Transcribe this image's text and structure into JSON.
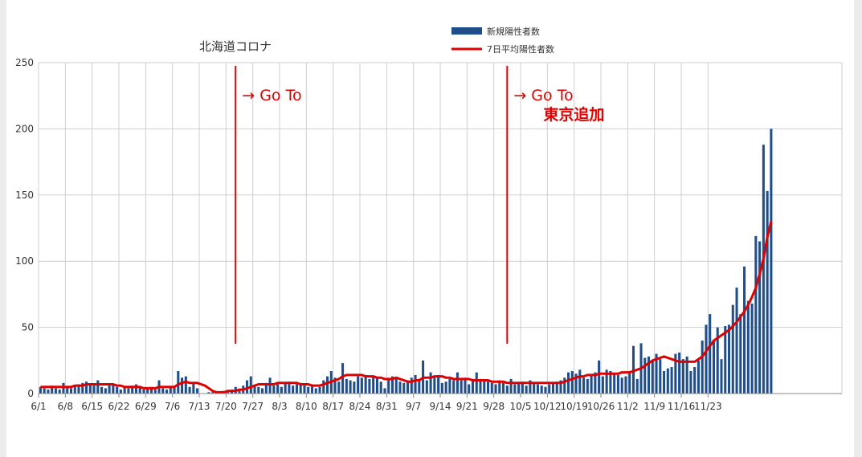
{
  "chart_data": {
    "type": "bar",
    "title": "北海道コロナ",
    "xlabel": "",
    "ylabel": "",
    "ylim": [
      0,
      250
    ],
    "yticks": [
      0,
      50,
      100,
      150,
      200,
      250
    ],
    "grid": true,
    "legend_position": "top",
    "x_tick_labels": [
      "6/1",
      "6/8",
      "6/15",
      "6/22",
      "6/29",
      "7/6",
      "7/13",
      "7/20",
      "7/27",
      "8/3",
      "8/10",
      "8/17",
      "8/24",
      "8/31",
      "9/7",
      "9/14",
      "9/21",
      "9/28",
      "10/5",
      "10/12",
      "10/19",
      "10/26",
      "11/2",
      "11/9",
      "11/16",
      "11/23"
    ],
    "x_start_date": "2020-06-01",
    "x_end_date": "2020-11-27",
    "series": [
      {
        "name": "新規陽性者数",
        "type": "bar",
        "color": "#1f4e8c",
        "values": [
          5,
          4,
          3,
          6,
          4,
          3,
          8,
          5,
          4,
          6,
          7,
          8,
          9,
          7,
          6,
          10,
          5,
          4,
          6,
          7,
          5,
          3,
          5,
          4,
          6,
          7,
          5,
          3,
          4,
          5,
          3,
          10,
          4,
          3,
          5,
          6,
          17,
          12,
          13,
          5,
          8,
          4,
          0,
          0,
          1,
          1,
          1,
          0,
          2,
          1,
          3,
          5,
          2,
          6,
          10,
          13,
          6,
          5,
          4,
          8,
          12,
          6,
          7,
          5,
          8,
          9,
          6,
          7,
          8,
          6,
          5,
          7,
          4,
          5,
          10,
          13,
          17,
          12,
          9,
          23,
          11,
          10,
          9,
          13,
          12,
          14,
          11,
          13,
          12,
          9,
          4,
          11,
          13,
          12,
          9,
          8,
          10,
          12,
          14,
          11,
          25,
          10,
          16,
          12,
          14,
          8,
          9,
          11,
          10,
          16,
          10,
          12,
          7,
          11,
          16,
          11,
          10,
          9,
          8,
          7,
          10,
          8,
          6,
          11,
          7,
          8,
          9,
          6,
          10,
          8,
          7,
          6,
          5,
          7,
          8,
          9,
          10,
          12,
          16,
          17,
          15,
          18,
          12,
          11,
          14,
          16,
          25,
          13,
          18,
          17,
          15,
          14,
          12,
          13,
          17,
          36,
          11,
          38,
          27,
          28,
          25,
          30,
          26,
          17,
          19,
          20,
          30,
          31,
          26,
          28,
          17,
          20,
          25,
          40,
          52,
          60,
          40,
          50,
          26,
          51,
          52,
          67,
          80,
          60,
          96,
          70,
          68,
          119,
          115,
          188,
          153,
          200,
          0,
          0,
          0,
          0,
          0,
          0,
          0,
          0,
          0,
          0,
          0,
          0,
          0,
          0,
          0,
          0,
          0,
          0
        ]
      },
      {
        "name": "7日平均陽性者数",
        "type": "line",
        "color": "#e00000",
        "values": [
          5,
          5,
          5,
          5,
          5,
          5,
          5,
          5,
          5,
          6,
          6,
          6,
          7,
          7,
          7,
          7,
          7,
          7,
          7,
          7,
          6,
          6,
          5,
          5,
          5,
          5,
          5,
          4,
          4,
          4,
          4,
          5,
          5,
          5,
          5,
          5,
          7,
          8,
          9,
          8,
          8,
          8,
          7,
          6,
          4,
          2,
          1,
          1,
          1,
          2,
          2,
          2,
          3,
          3,
          4,
          5,
          6,
          7,
          7,
          7,
          7,
          7,
          8,
          8,
          8,
          8,
          8,
          8,
          7,
          7,
          7,
          6,
          6,
          6,
          7,
          8,
          9,
          10,
          11,
          13,
          14,
          14,
          14,
          14,
          14,
          13,
          13,
          13,
          12,
          12,
          11,
          11,
          11,
          12,
          11,
          10,
          9,
          9,
          10,
          10,
          12,
          12,
          12,
          13,
          13,
          13,
          12,
          12,
          11,
          11,
          11,
          11,
          11,
          10,
          10,
          10,
          10,
          10,
          9,
          9,
          9,
          9,
          8,
          8,
          8,
          8,
          8,
          8,
          8,
          8,
          8,
          8,
          8,
          8,
          8,
          8,
          8,
          9,
          10,
          11,
          12,
          13,
          13,
          14,
          14,
          14,
          15,
          15,
          15,
          15,
          15,
          15,
          16,
          16,
          16,
          17,
          18,
          19,
          21,
          23,
          25,
          26,
          27,
          28,
          27,
          26,
          25,
          24,
          24,
          24,
          24,
          24,
          26,
          28,
          32,
          36,
          40,
          42,
          44,
          46,
          48,
          51,
          54,
          58,
          62,
          67,
          73,
          80,
          90,
          102,
          118,
          130,
          null,
          null,
          null,
          null,
          null,
          null,
          null,
          null,
          null,
          null,
          null,
          null,
          null,
          null,
          null,
          null,
          null,
          null
        ]
      }
    ],
    "annotations": [
      {
        "date": "2020-07-22",
        "text": "→  Go To",
        "color": "#e00000"
      },
      {
        "date": "2020-10-01",
        "text": "→  Go To",
        "text2": "東京追加",
        "color": "#e00000"
      }
    ]
  }
}
